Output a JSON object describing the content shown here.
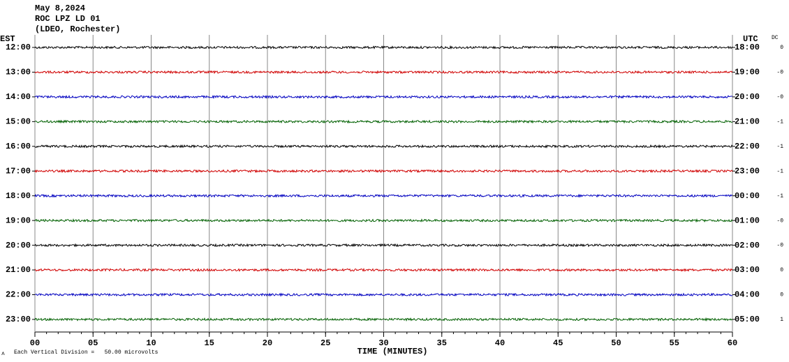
{
  "header": {
    "date": "May 8,2024",
    "station": "ROC LPZ LD 01",
    "network": "(LDEO, Rochester)"
  },
  "chart_data": {
    "type": "helicorder",
    "xlabel": "TIME (MINUTES)",
    "left_axis_label": "EST",
    "right_axis_label": "UTC",
    "dc_label": "DC",
    "xlim": [
      0,
      60
    ],
    "xticks": [
      {
        "value": 0,
        "label": "00"
      },
      {
        "value": 5,
        "label": "05"
      },
      10,
      15,
      20,
      25,
      30,
      35,
      40,
      45,
      50,
      55,
      60
    ],
    "rows_est": [
      "12:00",
      "13:00",
      "14:00",
      "15:00",
      "16:00",
      "17:00",
      "18:00",
      "19:00",
      "20:00",
      "21:00",
      "22:00",
      "23:00"
    ],
    "rows_utc": [
      "18:00",
      "19:00",
      "20:00",
      "21:00",
      "22:00",
      "23:00",
      "00:00",
      "01:00",
      "02:00",
      "03:00",
      "04:00",
      "05:00"
    ],
    "rows_dc": [
      "0",
      "-0",
      "-0",
      "-1",
      "-1",
      "-1",
      "-1",
      "-0",
      "-0",
      "0",
      "0",
      "1"
    ],
    "colors": [
      "#000000",
      "#d00000",
      "#0000c0",
      "#006000"
    ],
    "grid": true
  },
  "footer": "Each Vertical Division =   50.00 microvolts"
}
